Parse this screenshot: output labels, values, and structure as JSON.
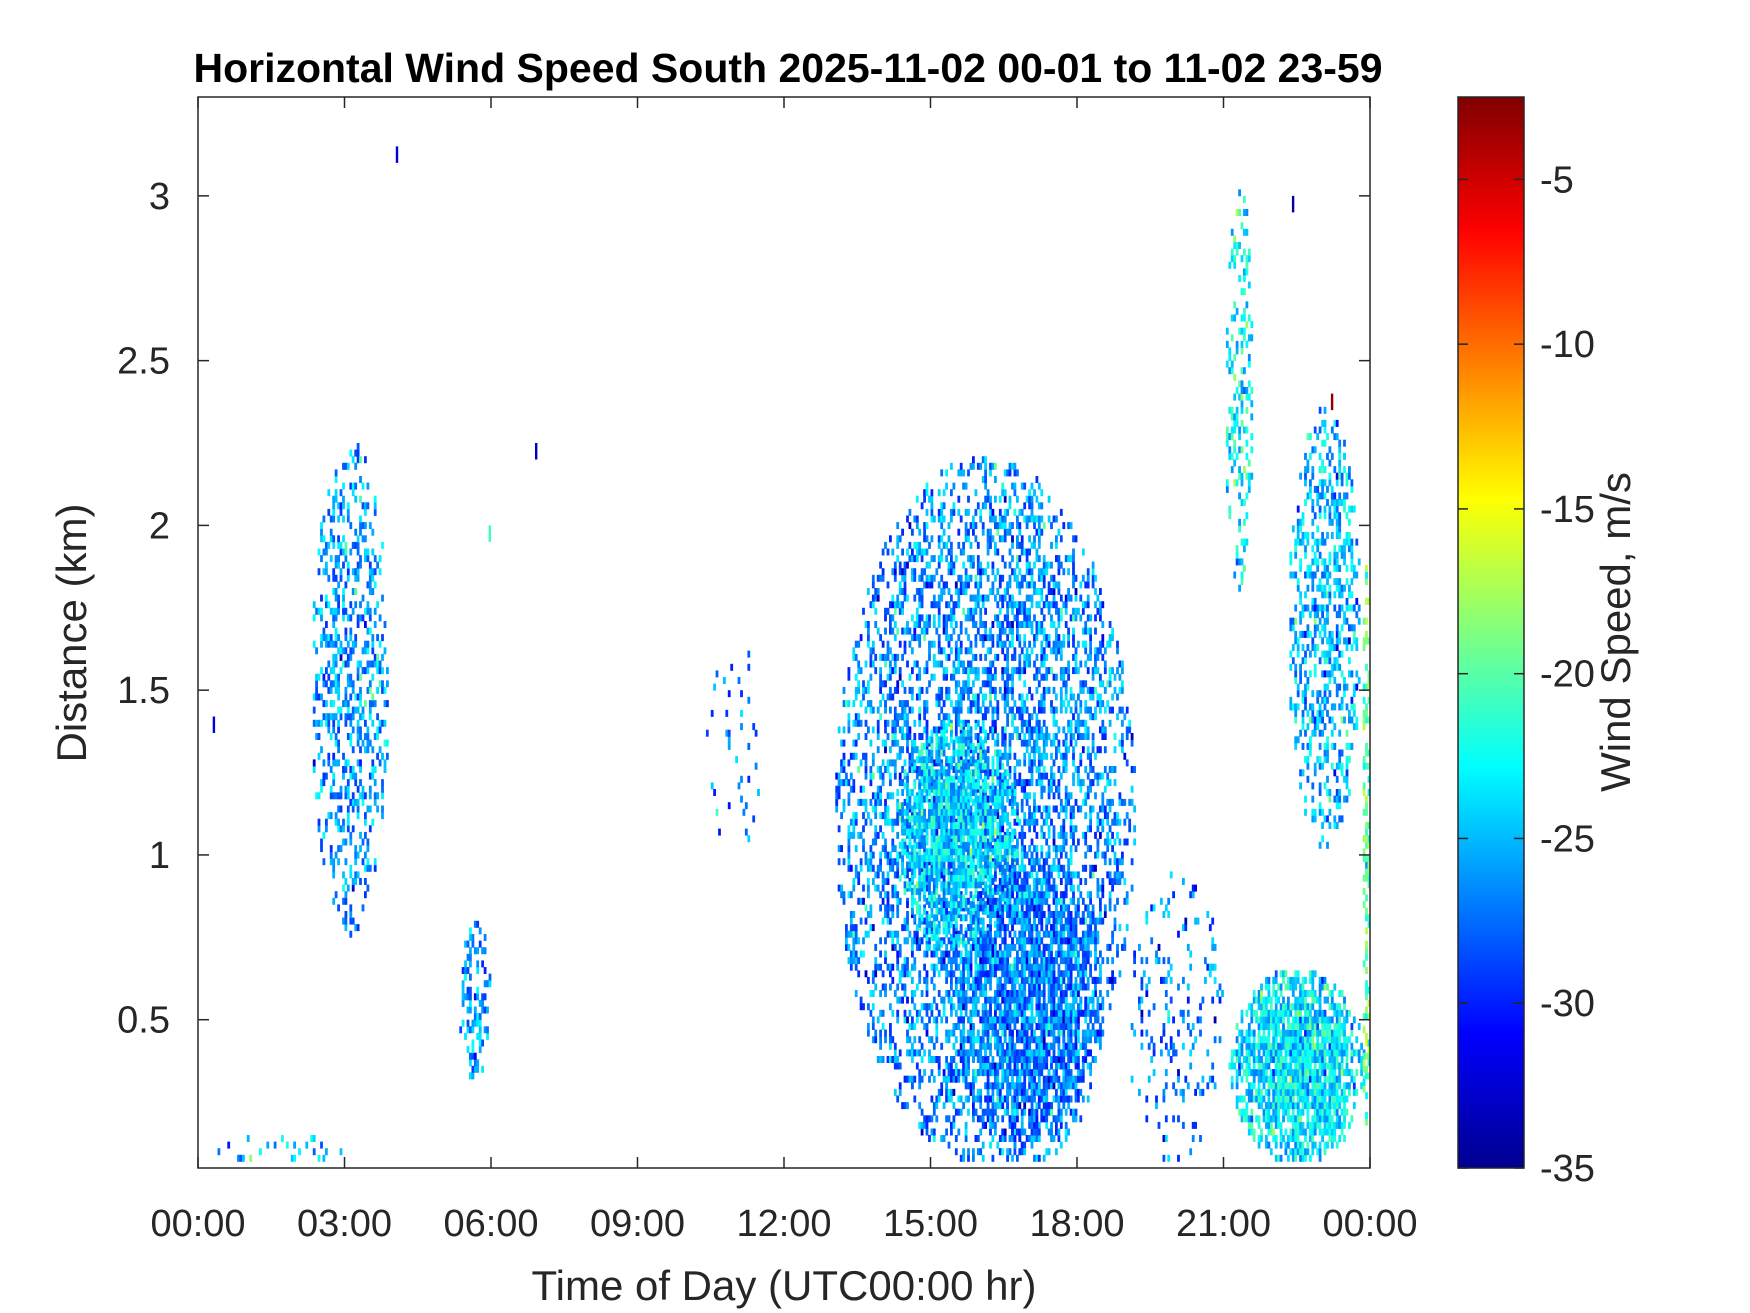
{
  "chart_data": {
    "type": "heatmap",
    "title": "Horizontal Wind Speed South 2025-11-02 00-01 to 11-02 23-59",
    "xlabel": "Time of Day (UTC00:00 hr)",
    "ylabel": "Distance (km)",
    "x_range_hours": [
      0,
      24
    ],
    "x_ticks": [
      {
        "hour": 0,
        "label": "00:00"
      },
      {
        "hour": 3,
        "label": "03:00"
      },
      {
        "hour": 6,
        "label": "06:00"
      },
      {
        "hour": 9,
        "label": "09:00"
      },
      {
        "hour": 12,
        "label": "12:00"
      },
      {
        "hour": 15,
        "label": "15:00"
      },
      {
        "hour": 18,
        "label": "18:00"
      },
      {
        "hour": 21,
        "label": "21:00"
      },
      {
        "hour": 24,
        "label": "00:00"
      }
    ],
    "ylim": [
      0.05,
      3.3
    ],
    "y_ticks": [
      {
        "value": 0.5,
        "label": "0.5"
      },
      {
        "value": 1.0,
        "label": "1"
      },
      {
        "value": 1.5,
        "label": "1.5"
      },
      {
        "value": 2.0,
        "label": "2"
      },
      {
        "value": 2.5,
        "label": "2.5"
      },
      {
        "value": 3.0,
        "label": "3"
      }
    ],
    "colorbar": {
      "label": "Wind Speed, m/s",
      "range": [
        -35,
        -2.5
      ],
      "ticks": [
        {
          "value": -5,
          "label": "-5"
        },
        {
          "value": -10,
          "label": "-10"
        },
        {
          "value": -15,
          "label": "-15"
        },
        {
          "value": -20,
          "label": "-20"
        },
        {
          "value": -25,
          "label": "-25"
        },
        {
          "value": -30,
          "label": "-30"
        },
        {
          "value": -35,
          "label": "-35"
        }
      ],
      "colormap": "jet"
    },
    "regions": [
      {
        "t": [
          2.3,
          3.9
        ],
        "d": [
          0.75,
          2.25
        ],
        "mean": -26,
        "density": 0.45
      },
      {
        "t": [
          5.3,
          6.0
        ],
        "d": [
          0.3,
          0.8
        ],
        "mean": -26,
        "density": 0.5
      },
      {
        "t": [
          0.2,
          3.0
        ],
        "d": [
          0.05,
          0.15
        ],
        "mean": -25,
        "density": 0.2
      },
      {
        "t": [
          13.0,
          19.2
        ],
        "d": [
          0.05,
          2.2
        ],
        "mean": -26.5,
        "density": 0.55
      },
      {
        "t": [
          14.2,
          16.8
        ],
        "d": [
          0.7,
          1.4
        ],
        "mean": -24,
        "density": 0.85
      },
      {
        "t": [
          15.5,
          18.5
        ],
        "d": [
          0.05,
          1.0
        ],
        "mean": -27,
        "density": 0.75
      },
      {
        "t": [
          19.0,
          21.0
        ],
        "d": [
          0.05,
          0.95
        ],
        "mean": -27,
        "density": 0.2
      },
      {
        "t": [
          21.1,
          23.9
        ],
        "d": [
          0.05,
          0.65
        ],
        "mean": -23.5,
        "density": 0.97
      },
      {
        "t": [
          21.0,
          21.6
        ],
        "d": [
          1.8,
          3.05
        ],
        "mean": -23,
        "density": 0.4
      },
      {
        "t": [
          22.3,
          23.8
        ],
        "d": [
          1.0,
          2.35
        ],
        "mean": -25,
        "density": 0.5
      },
      {
        "t": [
          23.8,
          24.0
        ],
        "d": [
          0.1,
          1.9
        ],
        "mean": -20,
        "density": 0.6
      },
      {
        "t": [
          10.3,
          11.6
        ],
        "d": [
          1.0,
          1.65
        ],
        "mean": -27,
        "density": 0.08
      }
    ],
    "scattered_points": [
      {
        "t": 0.3,
        "d": 1.37,
        "value": -32
      },
      {
        "t": 4.05,
        "d": 3.1,
        "value": -32
      },
      {
        "t": 6.9,
        "d": 2.2,
        "value": -33
      },
      {
        "t": 5.95,
        "d": 1.95,
        "value": -21
      },
      {
        "t": 22.4,
        "d": 2.95,
        "value": -34
      },
      {
        "t": 23.2,
        "d": 2.35,
        "value": -3
      }
    ]
  }
}
